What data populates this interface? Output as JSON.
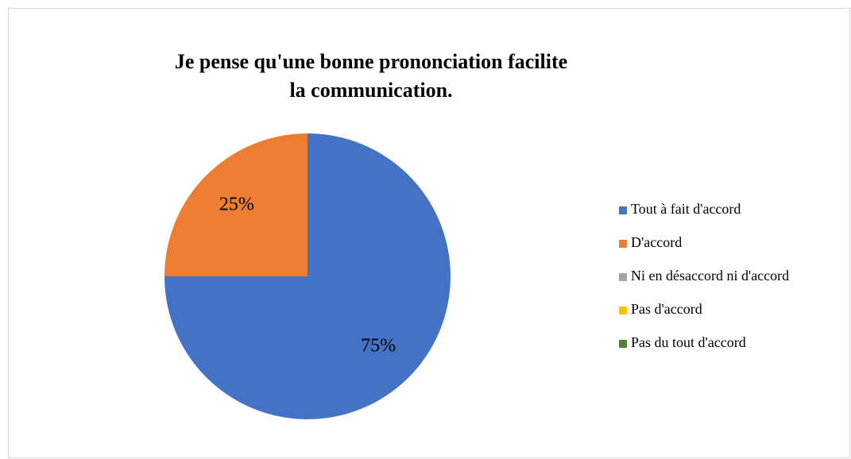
{
  "chart_data": {
    "type": "pie",
    "title": "Je pense qu'une bonne prononciation facilite la communication.",
    "categories": [
      "Tout à fait d'accord",
      "D'accord",
      "Ni en désaccord ni d'accord",
      "Pas d'accord",
      "Pas du tout d'accord"
    ],
    "values": [
      75,
      25,
      0,
      0,
      0
    ],
    "value_labels": [
      "75%",
      "25%",
      null,
      null,
      null
    ],
    "colors": [
      "#4472c4",
      "#ed7d31",
      "#a5a5a5",
      "#ffc000",
      "#548235"
    ],
    "legend": "right"
  }
}
